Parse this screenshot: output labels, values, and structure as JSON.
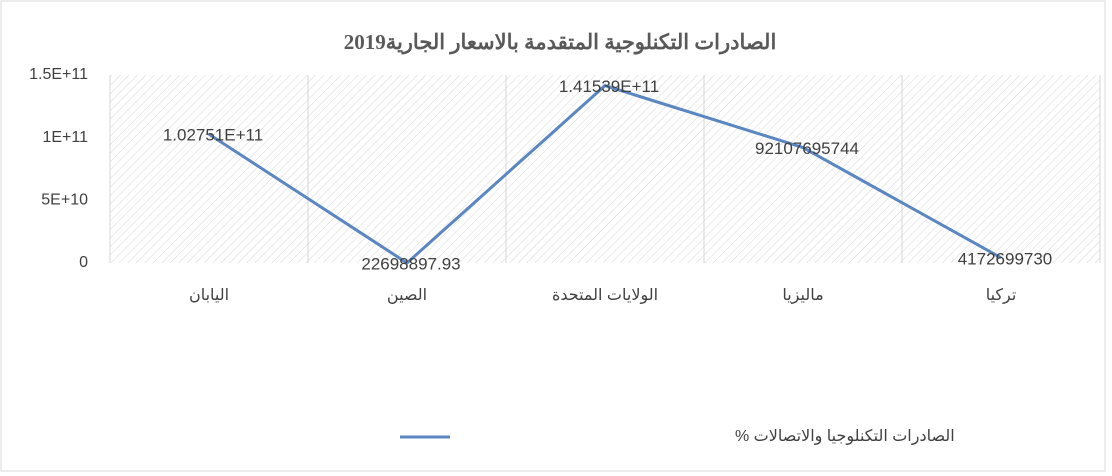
{
  "chart_data": {
    "type": "line",
    "title": "الصادرات التكنلوجية المتقدمة بالاسعار الجارية2019",
    "categories": [
      "اليابان",
      "الصين",
      "الولايات المتحدة",
      "ماليزيا",
      "تركيا"
    ],
    "series": [
      {
        "name": "الصادرات التكنلوجيا والاتصالات %",
        "color": "#5a86c2",
        "values": [
          102751000000,
          22698897.93,
          141539000000,
          92107695744,
          4172699730
        ],
        "value_labels": [
          "1.02751E+11",
          "22698897.93",
          "1.41539E+11",
          "92107695744",
          "4172699730"
        ]
      }
    ],
    "ylim": [
      0,
      150000000000
    ],
    "yticks": [
      0,
      {
        "value": 50000000000,
        "label": "5E+10"
      },
      {
        "value": 100000000000,
        "label": "1E+11"
      },
      {
        "value": 150000000000,
        "label": "1.5E+11"
      }
    ],
    "grid": false,
    "legend": "bottom"
  }
}
